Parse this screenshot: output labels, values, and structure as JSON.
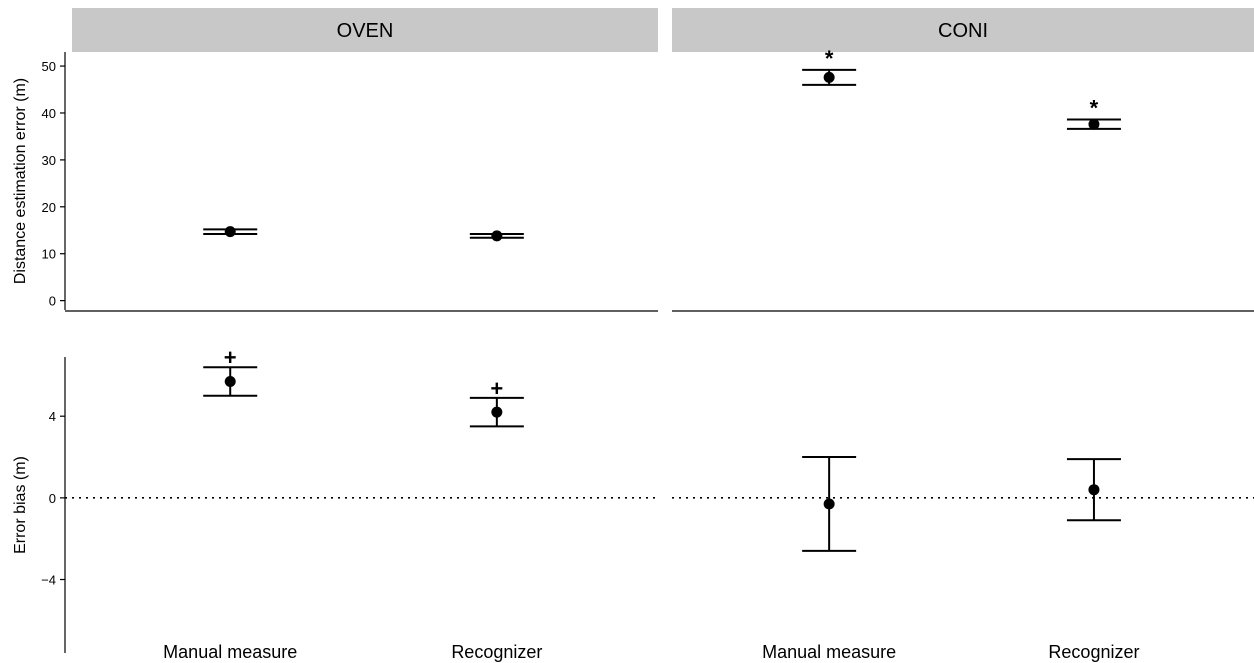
{
  "chart_data": {
    "type": "scatter",
    "description_type": "point-estimate-with-error-bars, faceted",
    "facets": [
      "OVEN",
      "CONI"
    ],
    "categories": [
      "Manual measure",
      "Recognizer"
    ],
    "rows": [
      {
        "id": "error",
        "ylabel": "Distance estimation error (m)",
        "ylim": [
          -2,
          53
        ],
        "yticks": [
          0,
          10,
          20,
          30,
          40,
          50
        ],
        "reference_line": null,
        "points": [
          {
            "facet": "OVEN",
            "category": "Manual measure",
            "y": 14.7,
            "low": 14.2,
            "high": 15.2,
            "annotation": ""
          },
          {
            "facet": "OVEN",
            "category": "Recognizer",
            "y": 13.8,
            "low": 13.4,
            "high": 14.2,
            "annotation": ""
          },
          {
            "facet": "CONI",
            "category": "Manual measure",
            "y": 47.6,
            "low": 46.0,
            "high": 49.2,
            "annotation": "*"
          },
          {
            "facet": "CONI",
            "category": "Recognizer",
            "y": 37.6,
            "low": 36.6,
            "high": 38.6,
            "annotation": "*"
          }
        ]
      },
      {
        "id": "bias",
        "ylabel": "Error bias (m)",
        "ylim": [
          -7.6,
          6.9
        ],
        "yticks": [
          -4,
          0,
          4
        ],
        "reference_line": 0,
        "points": [
          {
            "facet": "OVEN",
            "category": "Manual measure",
            "y": 5.7,
            "low": 5.0,
            "high": 6.4,
            "annotation": "+"
          },
          {
            "facet": "OVEN",
            "category": "Recognizer",
            "y": 4.2,
            "low": 3.5,
            "high": 4.9,
            "annotation": "+"
          },
          {
            "facet": "CONI",
            "category": "Manual measure",
            "y": -0.3,
            "low": -2.6,
            "high": 2.0,
            "annotation": ""
          },
          {
            "facet": "CONI",
            "category": "Recognizer",
            "y": 0.4,
            "low": -1.1,
            "high": 1.9,
            "annotation": ""
          }
        ]
      }
    ],
    "legend": "none",
    "grid": false
  }
}
